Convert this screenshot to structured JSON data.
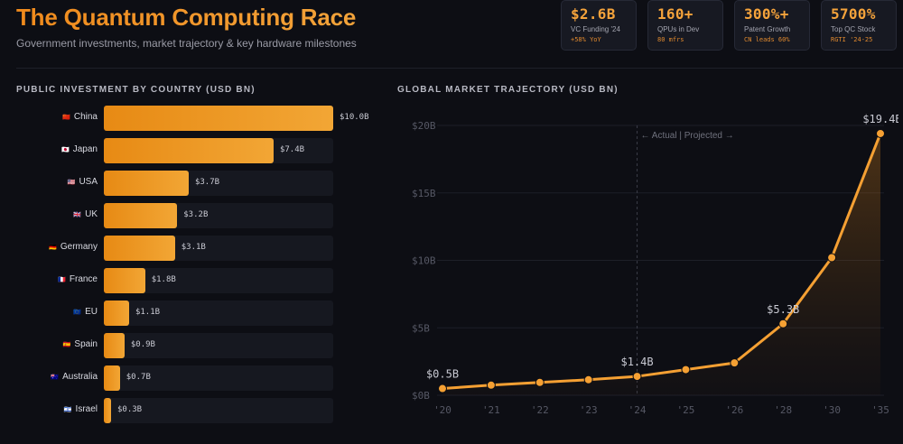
{
  "header": {
    "title": "The Quantum Computing Race",
    "subtitle": "Government investments, market trajectory & key hardware milestones"
  },
  "kpis": [
    {
      "value": "$2.6B",
      "label": "VC Funding '24",
      "sub": "+58% YoY"
    },
    {
      "value": "160+",
      "label": "QPUs in Dev",
      "sub": "80 mfrs"
    },
    {
      "value": "300%+",
      "label": "Patent Growth",
      "sub": "CN leads 60%"
    },
    {
      "value": "5700%",
      "label": "Top QC Stock",
      "sub": "RGTI '24-25"
    }
  ],
  "sections": {
    "investment_title": "PUBLIC INVESTMENT BY COUNTRY (USD BN)",
    "market_title": "GLOBAL MARKET TRAJECTORY (USD BN)"
  },
  "colors": {
    "accent": "#f29a2e",
    "bar_track": "#161820",
    "line": "#f5a033"
  },
  "chart_data": [
    {
      "type": "bar",
      "orientation": "horizontal",
      "title": "PUBLIC INVESTMENT BY COUNTRY (USD BN)",
      "categories": [
        "China",
        "Japan",
        "USA",
        "UK",
        "Germany",
        "France",
        "EU",
        "Spain",
        "Australia",
        "Israel"
      ],
      "flags": [
        "🇨🇳",
        "🇯🇵",
        "🇺🇸",
        "🇬🇧",
        "🇩🇪",
        "🇫🇷",
        "🇪🇺",
        "🇪🇸",
        "🇦🇺",
        "🇮🇱"
      ],
      "values": [
        10.0,
        7.4,
        3.7,
        3.2,
        3.1,
        1.8,
        1.1,
        0.9,
        0.7,
        0.3
      ],
      "value_labels": [
        "$10.0B",
        "$7.4B",
        "$3.7B",
        "$3.2B",
        "$3.1B",
        "$1.8B",
        "$1.1B",
        "$0.9B",
        "$0.7B",
        "$0.3B"
      ],
      "xlim": [
        0,
        10
      ]
    },
    {
      "type": "area",
      "title": "GLOBAL MARKET TRAJECTORY (USD BN)",
      "x": [
        "'20",
        "'21",
        "'22",
        "'23",
        "'24",
        "'25",
        "'26",
        "'28",
        "'30",
        "'35"
      ],
      "values": [
        0.5,
        0.75,
        0.95,
        1.15,
        1.4,
        1.9,
        2.4,
        5.3,
        10.2,
        19.4
      ],
      "ylim": [
        0,
        20
      ],
      "yticks": [
        0,
        5,
        10,
        15,
        20
      ],
      "ytick_labels": [
        "$0B",
        "$5B",
        "$10B",
        "$15B",
        "$20B"
      ],
      "annotations": [
        {
          "index": 0,
          "text": "$0.5B"
        },
        {
          "index": 4,
          "text": "$1.4B"
        },
        {
          "index": 7,
          "text": "$5.3B"
        },
        {
          "index": 9,
          "text": "$19.4B"
        }
      ],
      "divider_index": 4,
      "divider_label": "← Actual | Projected →"
    }
  ]
}
